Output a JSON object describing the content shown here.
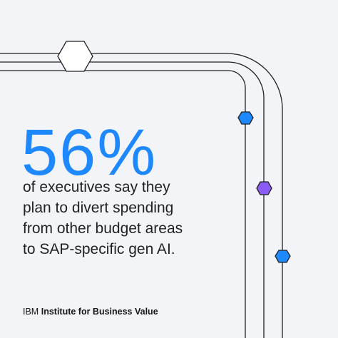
{
  "headline": {
    "value": "56%",
    "lines": [
      "of executives say they",
      "plan to divert spending",
      "from other budget areas",
      "to SAP-specific gen AI."
    ]
  },
  "brand": {
    "prefix": "IBM",
    "name": "Institute for Business Value"
  },
  "colors": {
    "background": "#f2f4f8",
    "accent_blue": "#1e88ff",
    "accent_purple": "#8a5cf6",
    "line": "#1f2124"
  },
  "icons": [
    "white-hexagon-icon",
    "blue-hexagon-icon",
    "purple-hexagon-icon",
    "blue-hexagon-icon"
  ]
}
